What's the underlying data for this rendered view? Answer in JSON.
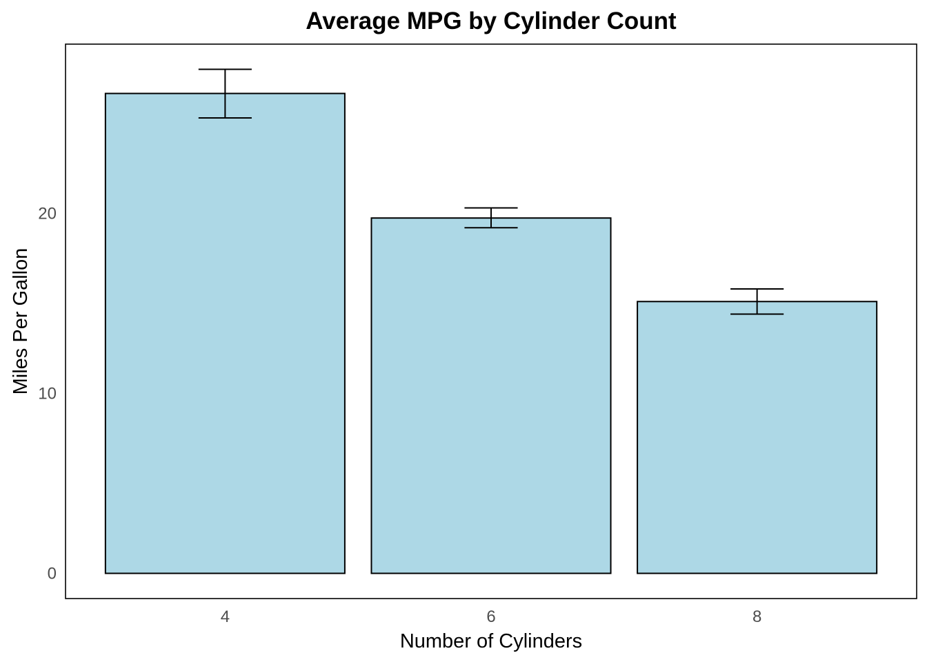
{
  "chart_data": {
    "type": "bar",
    "title": "Average MPG by Cylinder Count",
    "xlabel": "Number of Cylinders",
    "ylabel": "Miles Per Gallon",
    "categories": [
      "4",
      "6",
      "8"
    ],
    "values": [
      26.66,
      19.74,
      15.1
    ],
    "error_bars": [
      {
        "low": 25.3,
        "high": 28.0
      },
      {
        "low": 19.2,
        "high": 20.3
      },
      {
        "low": 14.4,
        "high": 15.8
      }
    ],
    "ylim": [
      -1.4,
      29.4
    ],
    "yticks": [
      0,
      10,
      20
    ],
    "ytick_labels": [
      "0",
      "10",
      "20"
    ],
    "grid": false,
    "legend": "none",
    "colors": {
      "bar_fill": "#add8e6",
      "bar_stroke": "#000000",
      "error_bar": "#000000",
      "panel_border": "#000000",
      "tick_text": "#4d4d4d",
      "title_text": "#000000"
    }
  }
}
